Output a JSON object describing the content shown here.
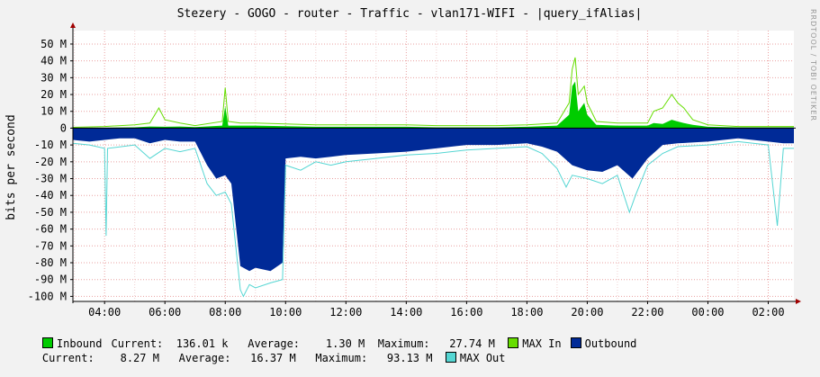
{
  "title": "Stezery - GOGO - router - Traffic - vlan171-WIFI - |query_ifAlias|",
  "watermark": "RRDTOOL / TOBI OETIKER",
  "colors": {
    "background": "#F2F2F2",
    "canvas": "#FFFFFF",
    "grid": "#E9A0A0",
    "inbound": "#00CC00",
    "max_in": "#66DD00",
    "outbound": "#002A97",
    "max_out": "#55D6D3"
  },
  "chart_data": {
    "type": "area",
    "title": "Stezery - GOGO - router - Traffic - vlan171-WIFI - |query_ifAlias|",
    "ylabel": "bits per second",
    "xlabel": "",
    "ylim": [
      -103,
      58
    ],
    "y_ticks": [
      {
        "v": 50,
        "label": "50 M"
      },
      {
        "v": 40,
        "label": "40 M"
      },
      {
        "v": 30,
        "label": "30 M"
      },
      {
        "v": 20,
        "label": "20 M"
      },
      {
        "v": 10,
        "label": "10 M"
      },
      {
        "v": 0,
        "label": "0"
      },
      {
        "v": -10,
        "label": "-10 M"
      },
      {
        "v": -20,
        "label": "-20 M"
      },
      {
        "v": -30,
        "label": "-30 M"
      },
      {
        "v": -40,
        "label": "-40 M"
      },
      {
        "v": -50,
        "label": "-50 M"
      },
      {
        "v": -60,
        "label": "-60 M"
      },
      {
        "v": -70,
        "label": "-70 M"
      },
      {
        "v": -80,
        "label": "-80 M"
      },
      {
        "v": -90,
        "label": "-90 M"
      },
      {
        "v": -100,
        "label": "-100 M"
      }
    ],
    "xlim": [
      2.95,
      26.85
    ],
    "x_ticks": [
      {
        "v": 4,
        "label": "04:00"
      },
      {
        "v": 6,
        "label": "06:00"
      },
      {
        "v": 8,
        "label": "08:00"
      },
      {
        "v": 10,
        "label": "10:00"
      },
      {
        "v": 12,
        "label": "12:00"
      },
      {
        "v": 14,
        "label": "14:00"
      },
      {
        "v": 16,
        "label": "16:00"
      },
      {
        "v": 18,
        "label": "18:00"
      },
      {
        "v": 20,
        "label": "20:00"
      },
      {
        "v": 22,
        "label": "22:00"
      },
      {
        "v": 24,
        "label": "00:00"
      },
      {
        "v": 26,
        "label": "02:00"
      }
    ],
    "grid": true,
    "x_unit": "hours (continuing past 24:00 into next day)",
    "series": [
      {
        "name": "Inbound",
        "style": "area",
        "points": [
          [
            2.95,
            0.3
          ],
          [
            4.0,
            0.3
          ],
          [
            5.0,
            0.5
          ],
          [
            5.5,
            1.0
          ],
          [
            6.0,
            0.8
          ],
          [
            6.5,
            1.0
          ],
          [
            7.0,
            0.6
          ],
          [
            7.9,
            1.5
          ],
          [
            8.0,
            13
          ],
          [
            8.1,
            1.5
          ],
          [
            8.5,
            1.5
          ],
          [
            9.0,
            1.5
          ],
          [
            10.0,
            1.2
          ],
          [
            11.0,
            0.8
          ],
          [
            12.0,
            0.8
          ],
          [
            13.0,
            0.8
          ],
          [
            14.0,
            0.8
          ],
          [
            15.0,
            0.5
          ],
          [
            16.0,
            0.5
          ],
          [
            17.0,
            0.5
          ],
          [
            18.0,
            0.8
          ],
          [
            19.0,
            1.5
          ],
          [
            19.4,
            8
          ],
          [
            19.5,
            25
          ],
          [
            19.6,
            27.7
          ],
          [
            19.7,
            10
          ],
          [
            19.9,
            15
          ],
          [
            20.0,
            8
          ],
          [
            20.3,
            2
          ],
          [
            21.0,
            1.5
          ],
          [
            22.0,
            1.5
          ],
          [
            22.2,
            3
          ],
          [
            22.5,
            2.5
          ],
          [
            22.8,
            5
          ],
          [
            23.0,
            4
          ],
          [
            23.2,
            3
          ],
          [
            23.5,
            2
          ],
          [
            24.0,
            0.8
          ],
          [
            25.0,
            0.5
          ],
          [
            26.0,
            0.5
          ],
          [
            26.85,
            0.5
          ]
        ]
      },
      {
        "name": "MAX In",
        "style": "line",
        "points": [
          [
            2.95,
            0.5
          ],
          [
            4.0,
            1.0
          ],
          [
            5.0,
            2.0
          ],
          [
            5.5,
            3.0
          ],
          [
            5.8,
            12
          ],
          [
            6.0,
            5
          ],
          [
            6.5,
            3.0
          ],
          [
            7.0,
            1.5
          ],
          [
            7.9,
            4
          ],
          [
            8.0,
            24
          ],
          [
            8.1,
            4
          ],
          [
            8.5,
            3
          ],
          [
            9.0,
            3
          ],
          [
            10.0,
            2.5
          ],
          [
            11.0,
            2
          ],
          [
            12.0,
            2
          ],
          [
            13.0,
            2
          ],
          [
            14.0,
            2
          ],
          [
            15.0,
            1.5
          ],
          [
            16.0,
            1.5
          ],
          [
            17.0,
            1.5
          ],
          [
            18.0,
            2
          ],
          [
            19.0,
            3
          ],
          [
            19.4,
            15
          ],
          [
            19.5,
            35
          ],
          [
            19.6,
            42
          ],
          [
            19.7,
            20
          ],
          [
            19.9,
            25
          ],
          [
            20.0,
            15
          ],
          [
            20.3,
            4
          ],
          [
            21.0,
            3
          ],
          [
            22.0,
            3
          ],
          [
            22.2,
            10
          ],
          [
            22.5,
            12
          ],
          [
            22.8,
            20
          ],
          [
            23.0,
            15
          ],
          [
            23.2,
            12
          ],
          [
            23.5,
            5
          ],
          [
            24.0,
            2
          ],
          [
            25.0,
            1
          ],
          [
            26.0,
            1
          ],
          [
            26.85,
            1
          ]
        ]
      },
      {
        "name": "Outbound",
        "style": "area",
        "points": [
          [
            2.95,
            -7
          ],
          [
            3.5,
            -8
          ],
          [
            4.0,
            -7
          ],
          [
            4.5,
            -6
          ],
          [
            5.0,
            -6
          ],
          [
            5.5,
            -9
          ],
          [
            6.0,
            -7
          ],
          [
            6.5,
            -8
          ],
          [
            7.0,
            -8
          ],
          [
            7.4,
            -22
          ],
          [
            7.7,
            -30
          ],
          [
            8.0,
            -28
          ],
          [
            8.2,
            -33
          ],
          [
            8.5,
            -82
          ],
          [
            8.8,
            -85
          ],
          [
            9.0,
            -83
          ],
          [
            9.5,
            -85
          ],
          [
            9.9,
            -80
          ],
          [
            10.0,
            -18
          ],
          [
            10.5,
            -17
          ],
          [
            11.0,
            -18
          ],
          [
            11.5,
            -17
          ],
          [
            12.0,
            -16
          ],
          [
            13.0,
            -15
          ],
          [
            14.0,
            -14
          ],
          [
            15.0,
            -12
          ],
          [
            16.0,
            -10
          ],
          [
            17.0,
            -10
          ],
          [
            18.0,
            -9
          ],
          [
            18.5,
            -11
          ],
          [
            19.0,
            -14
          ],
          [
            19.5,
            -22
          ],
          [
            20.0,
            -25
          ],
          [
            20.5,
            -26
          ],
          [
            21.0,
            -22
          ],
          [
            21.5,
            -30
          ],
          [
            22.0,
            -18
          ],
          [
            22.5,
            -10
          ],
          [
            23.0,
            -9
          ],
          [
            24.0,
            -8
          ],
          [
            25.0,
            -6
          ],
          [
            26.0,
            -8
          ],
          [
            26.5,
            -9
          ],
          [
            26.85,
            -9
          ]
        ]
      },
      {
        "name": "MAX Out",
        "style": "line",
        "points": [
          [
            2.95,
            -9
          ],
          [
            3.5,
            -10
          ],
          [
            4.0,
            -12
          ],
          [
            4.05,
            -64
          ],
          [
            4.1,
            -12
          ],
          [
            5.0,
            -10
          ],
          [
            5.5,
            -18
          ],
          [
            6.0,
            -12
          ],
          [
            6.5,
            -14
          ],
          [
            7.0,
            -12
          ],
          [
            7.4,
            -33
          ],
          [
            7.7,
            -40
          ],
          [
            8.0,
            -38
          ],
          [
            8.2,
            -45
          ],
          [
            8.5,
            -96
          ],
          [
            8.6,
            -100
          ],
          [
            8.8,
            -93
          ],
          [
            9.0,
            -95
          ],
          [
            9.5,
            -92
          ],
          [
            9.9,
            -90
          ],
          [
            10.0,
            -22
          ],
          [
            10.5,
            -25
          ],
          [
            11.0,
            -20
          ],
          [
            11.5,
            -22
          ],
          [
            12.0,
            -20
          ],
          [
            13.0,
            -18
          ],
          [
            14.0,
            -16
          ],
          [
            15.0,
            -15
          ],
          [
            16.0,
            -13
          ],
          [
            17.0,
            -12
          ],
          [
            18.0,
            -11
          ],
          [
            18.5,
            -15
          ],
          [
            19.0,
            -24
          ],
          [
            19.3,
            -35
          ],
          [
            19.5,
            -28
          ],
          [
            20.0,
            -30
          ],
          [
            20.5,
            -33
          ],
          [
            21.0,
            -28
          ],
          [
            21.4,
            -50
          ],
          [
            21.6,
            -40
          ],
          [
            22.0,
            -22
          ],
          [
            22.5,
            -15
          ],
          [
            23.0,
            -11
          ],
          [
            24.0,
            -10
          ],
          [
            25.0,
            -8
          ],
          [
            26.0,
            -10
          ],
          [
            26.3,
            -58
          ],
          [
            26.5,
            -12
          ],
          [
            26.85,
            -12
          ]
        ]
      }
    ]
  },
  "legend": {
    "inbound": {
      "label": "Inbound",
      "current_label": "Current:",
      "current": "136.01 k",
      "average_label": "Average:",
      "average": "1.30 M",
      "maximum_label": "Maximum:",
      "maximum": "27.74 M"
    },
    "max_in": {
      "label": "MAX In"
    },
    "outbound": {
      "label": "Outbound",
      "current_label": "Current:",
      "current": "8.27 M",
      "average_label": "Average:",
      "average": "16.37 M",
      "maximum_label": "Maximum:",
      "maximum": "93.13 M"
    },
    "max_out": {
      "label": "MAX Out"
    }
  }
}
